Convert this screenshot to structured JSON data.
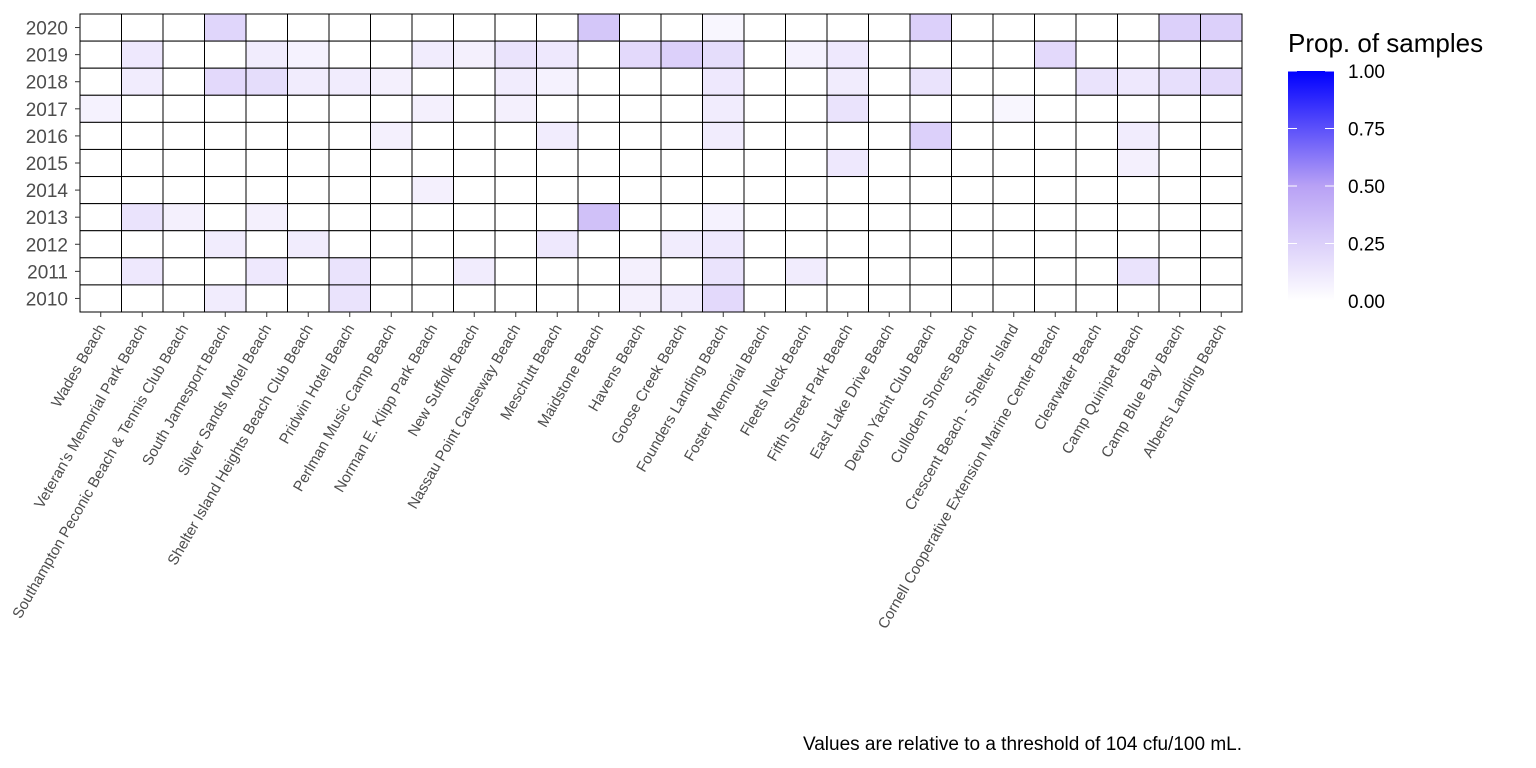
{
  "chart_data": {
    "type": "heatmap",
    "title": "",
    "xlabel": "",
    "ylabel": "",
    "x_categories": [
      "Wades Beach",
      "Veteran's Memorial Park Beach",
      "Southampton Peconic Beach & Tennis Club Beach",
      "South Jamesport Beach",
      "Silver Sands Motel Beach",
      "Shelter Island Heights Beach Club Beach",
      "Pridwin Hotel Beach",
      "Perlman Music Camp Beach",
      "Norman E. Klipp Park Beach",
      "New Suffolk Beach",
      "Nassau Point Causeway Beach",
      "Meschutt Beach",
      "Maidstone Beach",
      "Havens Beach",
      "Goose Creek Beach",
      "Founders Landing Beach",
      "Foster Memorial Beach",
      "Fleets Neck Beach",
      "Fifth Street Park Beach",
      "East Lake Drive Beach",
      "Devon Yacht Club Beach",
      "Culloden Shores Beach",
      "Crescent Beach - Shelter Island",
      "Cornell Cooperative Extension Marine Center Beach",
      "Clearwater Beach",
      "Camp Quinipet Beach",
      "Camp Blue Bay Beach",
      "Alberts Landing Beach"
    ],
    "y_categories": [
      "2020",
      "2019",
      "2018",
      "2017",
      "2016",
      "2015",
      "2014",
      "2013",
      "2012",
      "2011",
      "2010"
    ],
    "values": [
      [
        0,
        0,
        0,
        0.22,
        0,
        0,
        0,
        0,
        0,
        0,
        0,
        0,
        0.3,
        0,
        0,
        0.05,
        0,
        0,
        0,
        0,
        0.25,
        0,
        0,
        0,
        0,
        0,
        0.25,
        0.25
      ],
      [
        0,
        0.12,
        0,
        0,
        0.1,
        0.07,
        0,
        0,
        0.1,
        0.08,
        0.15,
        0.12,
        0,
        0.2,
        0.25,
        0.18,
        0,
        0.07,
        0.12,
        0,
        0,
        0,
        0,
        0.2,
        0,
        0,
        0,
        0
      ],
      [
        0,
        0.1,
        0,
        0.2,
        0.18,
        0.1,
        0.1,
        0.08,
        0,
        0,
        0.1,
        0.07,
        0,
        0,
        0,
        0.12,
        0,
        0,
        0.1,
        0,
        0.15,
        0,
        0,
        0,
        0.15,
        0.12,
        0.17,
        0.2
      ],
      [
        0.07,
        0,
        0,
        0,
        0,
        0,
        0,
        0,
        0.08,
        0,
        0.08,
        0,
        0,
        0,
        0,
        0.1,
        0,
        0,
        0.15,
        0,
        0,
        0,
        0.05,
        0,
        0,
        0,
        0,
        0
      ],
      [
        0,
        0,
        0,
        0,
        0,
        0,
        0,
        0.08,
        0,
        0,
        0,
        0.1,
        0,
        0,
        0,
        0.1,
        0,
        0,
        0,
        0,
        0.25,
        0,
        0,
        0,
        0,
        0.1,
        0,
        0
      ],
      [
        0,
        0,
        0,
        0,
        0,
        0,
        0,
        0,
        0,
        0,
        0,
        0,
        0,
        0,
        0,
        0,
        0,
        0,
        0.12,
        0,
        0,
        0,
        0,
        0,
        0,
        0.08,
        0,
        0
      ],
      [
        0,
        0,
        0,
        0,
        0,
        0,
        0,
        0,
        0.08,
        0,
        0,
        0,
        0,
        0,
        0,
        0,
        0,
        0,
        0,
        0,
        0,
        0,
        0,
        0,
        0,
        0,
        0,
        0
      ],
      [
        0,
        0.15,
        0.08,
        0,
        0.08,
        0,
        0,
        0,
        0,
        0,
        0,
        0,
        0.33,
        0,
        0,
        0.07,
        0,
        0,
        0,
        0,
        0,
        0,
        0,
        0,
        0,
        0,
        0,
        0
      ],
      [
        0,
        0,
        0,
        0.1,
        0,
        0.1,
        0,
        0,
        0,
        0,
        0,
        0.12,
        0,
        0,
        0.1,
        0.12,
        0,
        0,
        0,
        0,
        0,
        0,
        0,
        0,
        0,
        0,
        0,
        0
      ],
      [
        0,
        0.12,
        0,
        0,
        0.12,
        0,
        0.15,
        0,
        0,
        0.1,
        0,
        0,
        0,
        0.08,
        0,
        0.15,
        0,
        0.1,
        0,
        0,
        0,
        0,
        0,
        0,
        0,
        0.15,
        0,
        0
      ],
      [
        0,
        0,
        0,
        0.1,
        0,
        0,
        0.15,
        0,
        0,
        0,
        0,
        0,
        0,
        0.08,
        0.1,
        0.2,
        0,
        0,
        0,
        0,
        0,
        0,
        0,
        0,
        0,
        0,
        0,
        0
      ]
    ],
    "colorscale": {
      "low": "#ffffff",
      "high": "#0000ff",
      "min": 0,
      "max": 1
    },
    "legend": {
      "title": "Prop. of samples",
      "ticks": [
        "1.00",
        "0.75",
        "0.50",
        "0.25",
        "0.00"
      ],
      "tick_values": [
        1.0,
        0.75,
        0.5,
        0.25,
        0.0
      ],
      "placement": "right"
    },
    "caption": "Values are relative to a threshold of 104 cfu/100 mL.",
    "grid": false
  }
}
